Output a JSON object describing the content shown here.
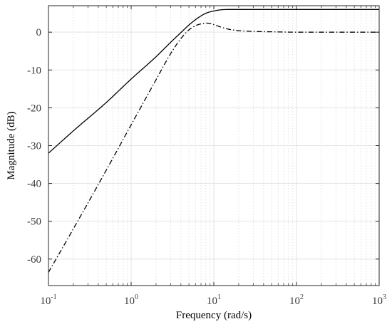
{
  "chart_data": {
    "type": "line",
    "xlabel": "Frequency  (rad/s)",
    "ylabel": "Magnitude (dB)",
    "xscale": "log",
    "xlim": [
      0.1,
      1000
    ],
    "ylim": [
      -67,
      7
    ],
    "grid": true,
    "legend": "none",
    "x_ticks": [
      {
        "value": 0.1,
        "base": "10",
        "exp": "-1"
      },
      {
        "value": 1,
        "base": "10",
        "exp": "0"
      },
      {
        "value": 10,
        "base": "10",
        "exp": "1"
      },
      {
        "value": 100,
        "base": "10",
        "exp": "2"
      },
      {
        "value": 1000,
        "base": "10",
        "exp": "3"
      }
    ],
    "y_ticks": [
      {
        "value": 0,
        "label": "0"
      },
      {
        "value": -10,
        "label": "-10"
      },
      {
        "value": -20,
        "label": "-20"
      },
      {
        "value": -30,
        "label": "-30"
      },
      {
        "value": -40,
        "label": "-40"
      },
      {
        "value": -50,
        "label": "-50"
      },
      {
        "value": -60,
        "label": "-60"
      }
    ],
    "series": [
      {
        "style": "solid",
        "color": "#000000",
        "x": [
          0.1,
          0.2,
          0.5,
          1,
          2,
          3,
          4,
          5,
          6,
          7,
          8,
          10,
          12,
          15,
          20,
          30,
          50,
          100,
          300,
          1000
        ],
        "y": [
          -32,
          -26.1,
          -18.6,
          -12.4,
          -6.5,
          -2.7,
          -0.1,
          1.9,
          3.3,
          4.3,
          5.0,
          5.6,
          5.9,
          6.0,
          6.0,
          6.0,
          6.0,
          6.0,
          6.0,
          6.0
        ]
      },
      {
        "style": "dashdot",
        "color": "#000000",
        "x": [
          0.1,
          0.2,
          0.5,
          1,
          2,
          3,
          4,
          5,
          6,
          7,
          8,
          9,
          10,
          12,
          15,
          20,
          30,
          50,
          100,
          300,
          1000
        ],
        "y": [
          -63.5,
          -52,
          -36.5,
          -24.5,
          -12.6,
          -5.7,
          -1.7,
          0.6,
          1.7,
          2.2,
          2.4,
          2.3,
          2.0,
          1.4,
          0.8,
          0.4,
          0.2,
          0.1,
          0.0,
          0.0,
          0.0
        ]
      }
    ]
  }
}
